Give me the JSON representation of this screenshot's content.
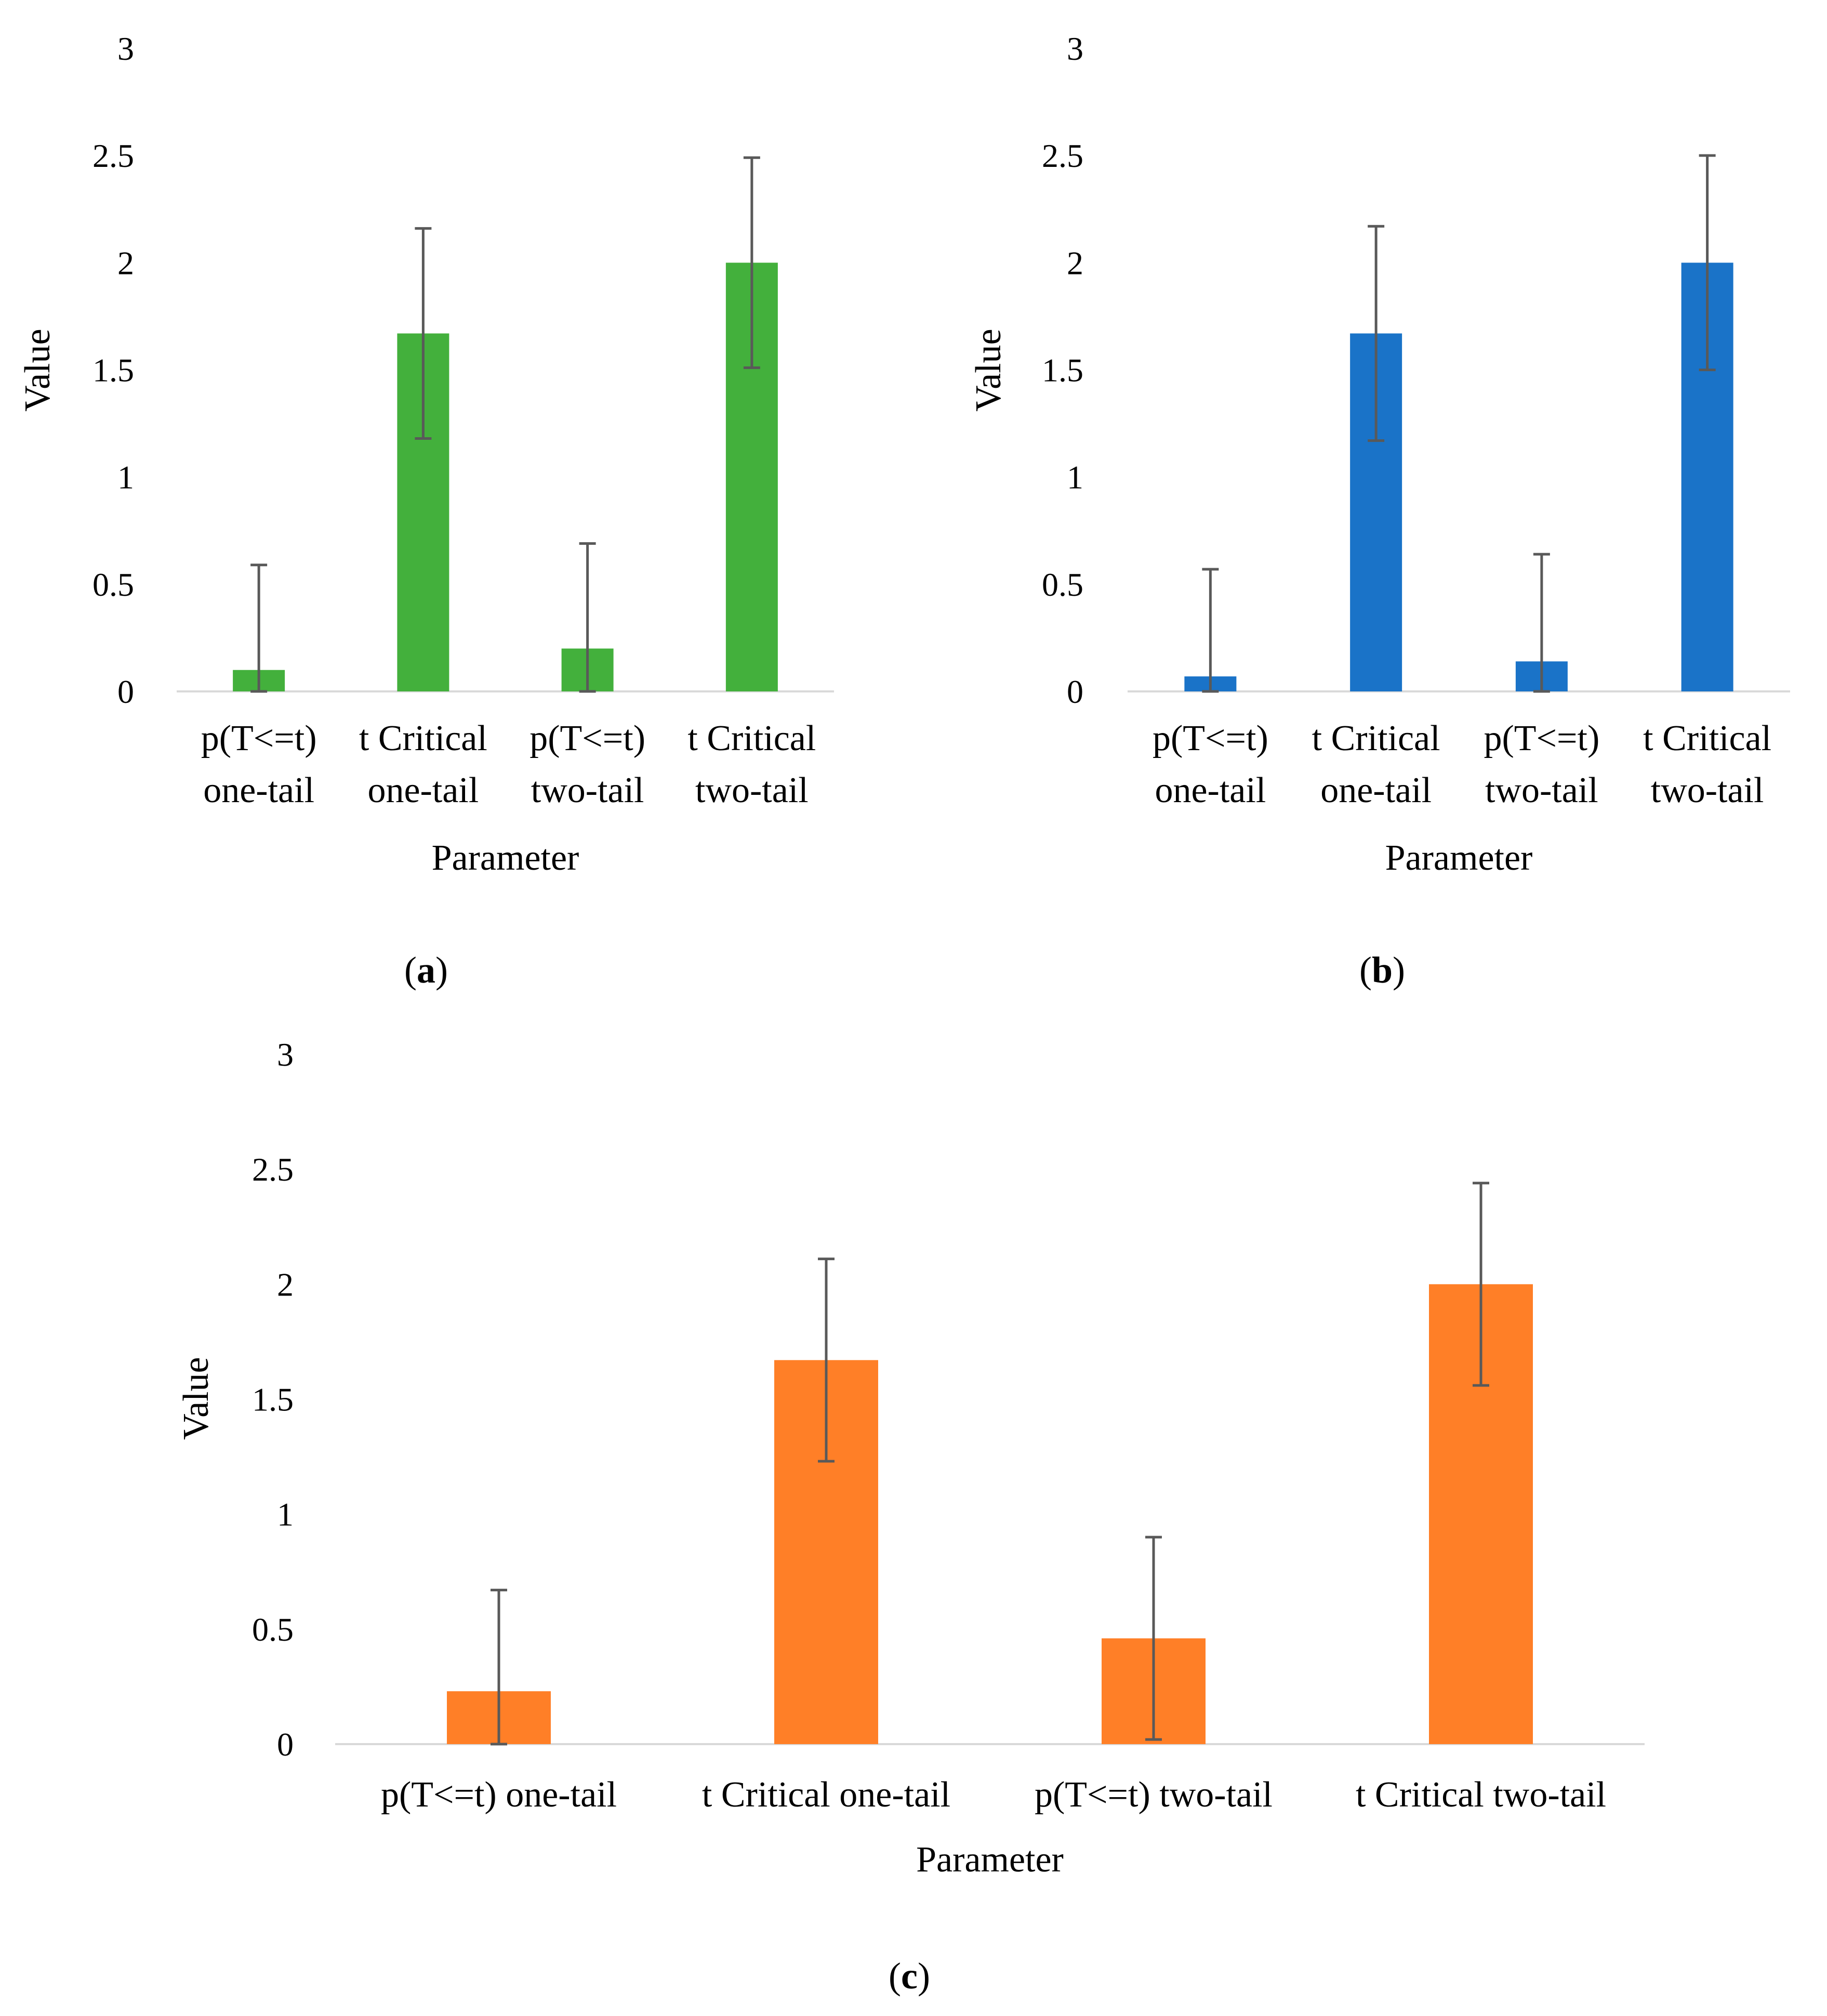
{
  "chart_data": [
    {
      "id": "a",
      "type": "bar",
      "panel_label": "a",
      "xlabel": "Parameter",
      "ylabel": "Value",
      "ylim": [
        0,
        3
      ],
      "yticks": [
        "0",
        "0.5",
        "1",
        "1.5",
        "2",
        "2.5",
        "3"
      ],
      "color": "#43B03C",
      "categories": [
        [
          "p(T<=t)",
          "one-tail"
        ],
        [
          "t Critical",
          "one-tail"
        ],
        [
          "p(T<=t)",
          "two-tail"
        ],
        [
          "t Critical",
          "two-tail"
        ]
      ],
      "values": [
        0.1,
        1.67,
        0.2,
        2.0
      ],
      "error_bars": [
        0.49,
        0.49,
        0.49,
        0.49
      ]
    },
    {
      "id": "b",
      "type": "bar",
      "panel_label": "b",
      "xlabel": "Parameter",
      "ylabel": "Value",
      "ylim": [
        0,
        3
      ],
      "yticks": [
        "0",
        "0.5",
        "1",
        "1.5",
        "2",
        "2.5",
        "3"
      ],
      "color": "#1A73C8",
      "categories": [
        [
          "p(T<=t)",
          "one-tail"
        ],
        [
          "t Critical",
          "one-tail"
        ],
        [
          "p(T<=t)",
          "two-tail"
        ],
        [
          "t Critical",
          "two-tail"
        ]
      ],
      "values": [
        0.07,
        1.67,
        0.14,
        2.0
      ],
      "error_bars": [
        0.5,
        0.5,
        0.5,
        0.5
      ]
    },
    {
      "id": "c",
      "type": "bar",
      "panel_label": "c",
      "xlabel": "Parameter",
      "ylabel": "Value",
      "ylim": [
        0,
        3
      ],
      "yticks": [
        "0",
        "0.5",
        "1",
        "1.5",
        "2",
        "2.5",
        "3"
      ],
      "color": "#FF7F27",
      "categories": [
        [
          "p(T<=t) one-tail"
        ],
        [
          "t Critical one-tail"
        ],
        [
          "p(T<=t) two-tail"
        ],
        [
          "t Critical two-tail"
        ]
      ],
      "values": [
        0.23,
        1.67,
        0.46,
        2.0
      ],
      "error_bars": [
        0.44,
        0.44,
        0.44,
        0.44
      ]
    }
  ]
}
